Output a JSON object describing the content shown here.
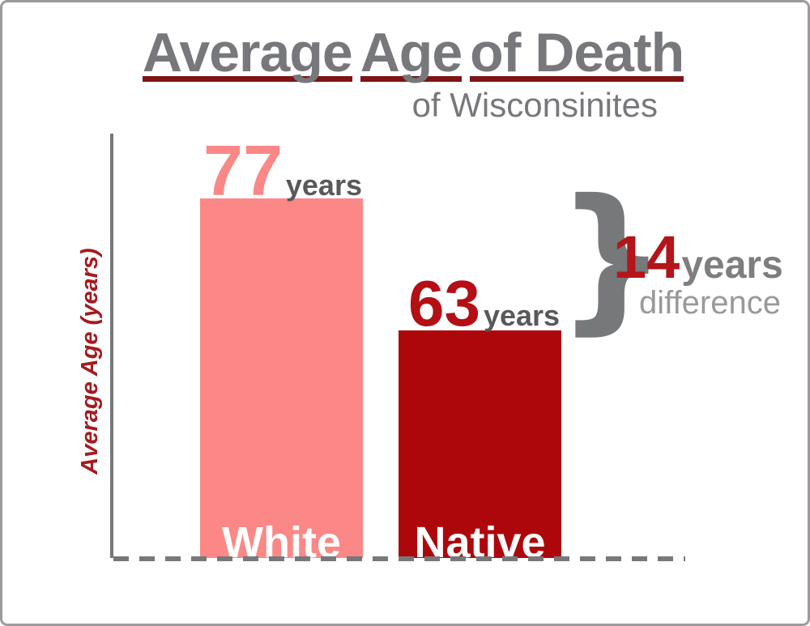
{
  "chart_data": {
    "type": "bar",
    "title": "Average Age of Death",
    "subtitle": "of Wisconsinites",
    "categories": [
      "White",
      "Native"
    ],
    "values": [
      77,
      63
    ],
    "unit": "years",
    "ylabel": "Average Age (years)",
    "xlabel": "",
    "difference_annotation": {
      "value": 14,
      "unit": "years",
      "label": "difference"
    },
    "bar_colors": [
      "#fb8886",
      "#ae070b"
    ],
    "grid": false,
    "legend": "none",
    "baseline_style": "dashed",
    "value_labels_shown": true
  },
  "title": {
    "words": [
      {
        "text": "Average"
      },
      {
        "text": "Age"
      },
      {
        "text": "of Death"
      }
    ],
    "color": "#77787b",
    "underline_color": "#7d1517"
  },
  "subtitle": {
    "text": "of Wisconsinites",
    "color": "#77787b"
  },
  "y_axis": {
    "label": "Average Age (years)",
    "label_color": "#a41b1f",
    "line_color": "#77787a"
  },
  "bars": [
    {
      "name": "White",
      "value": "77",
      "unit": "years",
      "color": "#fb8886",
      "value_color": "#fb8886",
      "unit_color": "#58595b",
      "name_color": "#ffffff"
    },
    {
      "name": "Native",
      "value": "63",
      "unit": "years",
      "color": "#ae070b",
      "value_color": "#b30f14",
      "unit_color": "#58595b",
      "name_color": "#ffffff"
    }
  ],
  "difference": {
    "bracket_glyph": "}",
    "bracket_color": "#77787a",
    "value": "14",
    "value_color": "#b4151a",
    "unit": "years",
    "unit_color": "#7d7e80",
    "caption": "difference",
    "caption_color": "#98999b"
  }
}
